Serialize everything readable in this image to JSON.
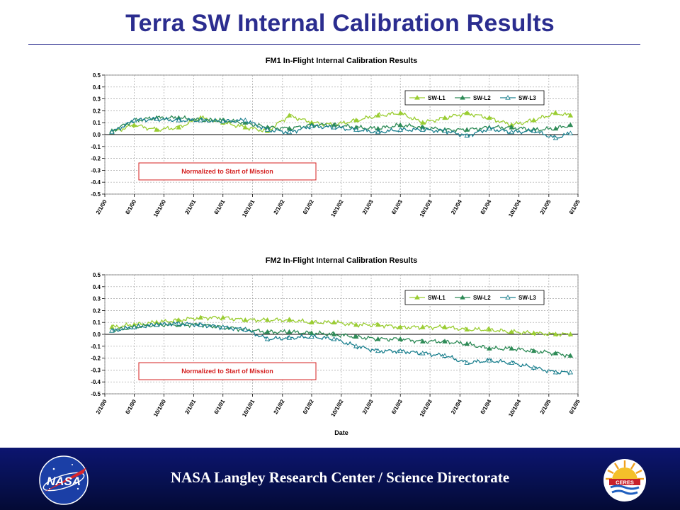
{
  "slide": {
    "title": "Terra SW Internal Calibration Results",
    "footer": "NASA Langley Research Center / Science Directorate",
    "logo_left_text": "NASA",
    "logo_right_text": "CERES",
    "logo_left_icon": "nasa-meatball-icon",
    "logo_right_icon": "ceres-sun-icon",
    "title_color": "#2b2d8f",
    "footer_color": "#071050"
  },
  "chart_data": [
    {
      "type": "line",
      "title": "FM1 In-Flight Internal Calibration Results",
      "xlabel": "",
      "ylabel": "",
      "ylim": [
        -0.5,
        0.5
      ],
      "yticks": [
        "0.5",
        "0.4",
        "0.3",
        "0.2",
        "0.1",
        "0.0",
        "-0.1",
        "-0.2",
        "-0.3",
        "-0.4",
        "-0.5"
      ],
      "xticks": [
        "2/1/00",
        "6/1/00",
        "10/1/00",
        "2/1/01",
        "6/1/01",
        "10/1/01",
        "2/1/02",
        "6/1/02",
        "10/1/02",
        "2/1/03",
        "6/1/03",
        "10/1/03",
        "2/1/04",
        "6/1/04",
        "10/1/04",
        "2/1/05",
        "6/1/05"
      ],
      "xlim": [
        "2/1/00",
        "6/1/05"
      ],
      "grid": true,
      "legend_position": "top-right",
      "annotation": "Normalized to Start of Mission",
      "x": [
        "3/1/00",
        "6/1/00",
        "9/1/00",
        "12/1/00",
        "3/1/01",
        "6/1/01",
        "9/1/01",
        "12/1/01",
        "3/1/02",
        "6/1/02",
        "9/1/02",
        "12/1/02",
        "3/1/03",
        "6/1/03",
        "9/1/03",
        "12/1/03",
        "3/1/04",
        "6/1/04",
        "9/1/04",
        "12/1/04",
        "3/1/05",
        "5/1/05"
      ],
      "series": [
        {
          "name": "SW-L1",
          "color": "#9acd32",
          "marker": "triangle",
          "values": [
            0.02,
            0.08,
            0.04,
            0.06,
            0.14,
            0.1,
            0.06,
            0.03,
            0.16,
            0.1,
            0.08,
            0.12,
            0.16,
            0.18,
            0.1,
            0.14,
            0.18,
            0.14,
            0.08,
            0.12,
            0.18,
            0.16
          ]
        },
        {
          "name": "SW-L2",
          "color": "#2e8b57",
          "marker": "triangle",
          "values": [
            0.03,
            0.12,
            0.14,
            0.14,
            0.12,
            0.12,
            0.1,
            0.06,
            0.05,
            0.08,
            0.08,
            0.06,
            0.05,
            0.08,
            0.06,
            0.04,
            0.04,
            0.06,
            0.06,
            0.04,
            0.05,
            0.08
          ]
        },
        {
          "name": "SW-L3",
          "color": "#1a7f8e",
          "marker": "triangle-open",
          "values": [
            0.02,
            0.12,
            0.13,
            0.12,
            0.12,
            0.11,
            0.12,
            0.04,
            0.02,
            0.07,
            0.06,
            0.04,
            0.02,
            0.04,
            0.04,
            0.03,
            -0.01,
            0.05,
            0.02,
            0.03,
            -0.03,
            0.01
          ]
        }
      ]
    },
    {
      "type": "line",
      "title": "FM2 In-Flight Internal Calibration Results",
      "xlabel": "Date",
      "ylabel": "",
      "ylim": [
        -0.5,
        0.5
      ],
      "yticks": [
        "0.5",
        "0.4",
        "0.3",
        "0.2",
        "0.1",
        "0.0",
        "-0.1",
        "-0.2",
        "-0.3",
        "-0.4",
        "-0.5"
      ],
      "xticks": [
        "2/1/00",
        "6/1/00",
        "10/1/00",
        "2/1/01",
        "6/1/01",
        "10/1/01",
        "2/1/02",
        "6/1/02",
        "10/1/02",
        "2/1/03",
        "6/1/03",
        "10/1/03",
        "2/1/04",
        "6/1/04",
        "10/1/04",
        "2/1/05",
        "6/1/05"
      ],
      "xlim": [
        "2/1/00",
        "6/1/05"
      ],
      "grid": true,
      "legend_position": "top-right",
      "annotation": "Normalized to Start of Mission",
      "x": [
        "3/1/00",
        "6/1/00",
        "9/1/00",
        "12/1/00",
        "3/1/01",
        "6/1/01",
        "9/1/01",
        "12/1/01",
        "3/1/02",
        "6/1/02",
        "9/1/02",
        "12/1/02",
        "3/1/03",
        "6/1/03",
        "9/1/03",
        "12/1/03",
        "3/1/04",
        "6/1/04",
        "9/1/04",
        "12/1/04",
        "3/1/05",
        "5/1/05"
      ],
      "series": [
        {
          "name": "SW-L1",
          "color": "#9acd32",
          "marker": "triangle",
          "values": [
            0.06,
            0.08,
            0.1,
            0.12,
            0.14,
            0.14,
            0.12,
            0.12,
            0.12,
            0.1,
            0.1,
            0.08,
            0.08,
            0.06,
            0.06,
            0.06,
            0.04,
            0.04,
            0.02,
            0.01,
            0.0,
            0.0
          ]
        },
        {
          "name": "SW-L2",
          "color": "#2e8b57",
          "marker": "triangle",
          "values": [
            0.03,
            0.06,
            0.08,
            0.08,
            0.08,
            0.06,
            0.04,
            0.02,
            0.02,
            0.01,
            0.0,
            -0.02,
            -0.04,
            -0.04,
            -0.06,
            -0.06,
            -0.08,
            -0.12,
            -0.12,
            -0.14,
            -0.16,
            -0.18
          ]
        },
        {
          "name": "SW-L3",
          "color": "#1a7f8e",
          "marker": "triangle-open",
          "values": [
            0.03,
            0.06,
            0.08,
            0.09,
            0.08,
            0.06,
            0.04,
            -0.04,
            -0.03,
            -0.02,
            -0.04,
            -0.1,
            -0.14,
            -0.14,
            -0.16,
            -0.18,
            -0.24,
            -0.22,
            -0.24,
            -0.28,
            -0.32,
            -0.32
          ]
        }
      ]
    }
  ]
}
